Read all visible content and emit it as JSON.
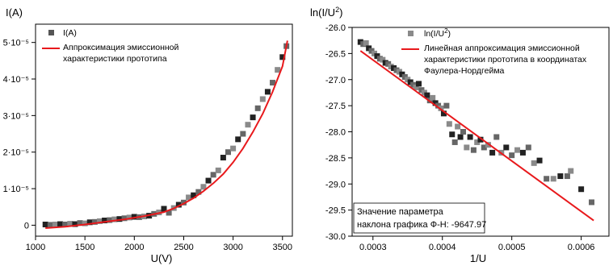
{
  "chart_data": [
    {
      "type": "scatter",
      "xlabel": "U(V)",
      "ylabel": "I(A)",
      "xlim": [
        1000,
        3600
      ],
      "ylim": [
        -3e-06,
        5.5e-05
      ],
      "x_ticks": [
        1000,
        1500,
        2000,
        2500,
        3000,
        3500
      ],
      "x_tick_labels": [
        "1000",
        "1500",
        "2000",
        "2500",
        "3000",
        "3500"
      ],
      "y_ticks": [
        0,
        1e-05,
        2e-05,
        3e-05,
        4e-05,
        5e-05
      ],
      "y_tick_labels": [
        "0",
        "1·10⁻⁵",
        "2·10⁻⁵",
        "3·10⁻⁵",
        "4·10⁻⁵",
        "5·10⁻⁵"
      ],
      "legend_position": "top-left",
      "grid": false,
      "series": [
        {
          "name": "I(A)",
          "kind": "points",
          "color": "#555555",
          "x": [
            1100,
            1150,
            1200,
            1250,
            1300,
            1350,
            1400,
            1450,
            1500,
            1550,
            1600,
            1650,
            1700,
            1750,
            1800,
            1850,
            1900,
            1950,
            2000,
            2050,
            2100,
            2150,
            2200,
            2250,
            2300,
            2350,
            2400,
            2450,
            2500,
            2550,
            2600,
            2650,
            2700,
            2750,
            2800,
            2850,
            2900,
            2950,
            3000,
            3050,
            3100,
            3150,
            3200,
            3250,
            3300,
            3350,
            3400,
            3450,
            3500,
            3540
          ],
          "y": [
            2e-07,
            1e-07,
            2e-07,
            3e-07,
            2e-07,
            4e-07,
            3e-07,
            6e-07,
            5e-07,
            8e-07,
            9e-07,
            1.1e-06,
            1.3e-06,
            1.4e-06,
            1.6e-06,
            1.7e-06,
            1.9e-06,
            2.1e-06,
            2.3e-06,
            2.2e-06,
            2.4e-06,
            2.6e-06,
            3.1e-06,
            3.5e-06,
            4.5e-06,
            3.4e-06,
            4.7e-06,
            5.6e-06,
            6.2e-06,
            7.6e-06,
            8.2e-06,
            9.1e-06,
            1.05e-05,
            1.22e-05,
            1.38e-05,
            1.5e-05,
            1.85e-05,
            2e-05,
            2.1e-05,
            2.35e-05,
            2.5e-05,
            2.75e-05,
            2.95e-05,
            3.2e-05,
            3.45e-05,
            3.65e-05,
            3.9e-05,
            4.25e-05,
            4.6e-05,
            4.9e-05
          ]
        },
        {
          "name": "Аппроксимация эмиссионной характеристики прототипа",
          "kind": "line",
          "color": "#e8191c",
          "x": [
            1100,
            1300,
            1500,
            1700,
            1900,
            2100,
            2300,
            2400,
            2500,
            2600,
            2700,
            2800,
            2900,
            3000,
            3100,
            3200,
            3300,
            3400,
            3500,
            3550
          ],
          "y": [
            -8e-07,
            -4e-07,
            2e-07,
            9e-07,
            1.6e-06,
            2.5e-06,
            3.6e-06,
            4.6e-06,
            5.9e-06,
            7.4e-06,
            9.3e-06,
            1.15e-05,
            1.4e-05,
            1.72e-05,
            2.1e-05,
            2.55e-05,
            3.05e-05,
            3.65e-05,
            4.35e-05,
            5.05e-05
          ]
        }
      ]
    },
    {
      "type": "scatter",
      "xlabel": "1/U",
      "ylabel": "ln(I/U²)",
      "xlim": [
        0.00027,
        0.00064
      ],
      "ylim": [
        -30.0,
        -26.0
      ],
      "x_ticks": [
        0.0003,
        0.0004,
        0.0005,
        0.0006
      ],
      "x_tick_labels": [
        "0.0003",
        "0.0004",
        "0.0005",
        "0.0006"
      ],
      "y_ticks": [
        -30.0,
        -29.5,
        -29.0,
        -28.5,
        -28.0,
        -27.5,
        -27.0,
        -26.5,
        -26.0
      ],
      "y_tick_labels": [
        "-30.0",
        "-29.5",
        "-29.0",
        "-28.5",
        "-28.0",
        "-27.5",
        "-27.0",
        "-26.5",
        "-26.0"
      ],
      "legend_position": "top-right",
      "grid": false,
      "series": [
        {
          "name": "ln(I/U²)",
          "kind": "points",
          "color": "#555555",
          "x": [
            0.000282,
            0.000286,
            0.00029,
            0.000294,
            0.000298,
            0.000302,
            0.000306,
            0.00031,
            0.000314,
            0.000318,
            0.000322,
            0.000326,
            0.00033,
            0.000334,
            0.000338,
            0.000342,
            0.000346,
            0.00035,
            0.000354,
            0.000358,
            0.000362,
            0.000366,
            0.00037,
            0.000374,
            0.000378,
            0.000382,
            0.000386,
            0.00039,
            0.000394,
            0.000398,
            0.000402,
            0.000406,
            0.00041,
            0.000414,
            0.000418,
            0.000422,
            0.000426,
            0.00043,
            0.000435,
            0.00044,
            0.000445,
            0.00045,
            0.000455,
            0.00046,
            0.000466,
            0.000472,
            0.000478,
            0.000485,
            0.000492,
            0.0005,
            0.000508,
            0.000516,
            0.000524,
            0.000532,
            0.00054,
            0.00055,
            0.00056,
            0.00057,
            0.00058,
            0.000585,
            0.0006,
            0.000615
          ],
          "y": [
            -26.28,
            -26.32,
            -26.3,
            -26.4,
            -26.45,
            -26.5,
            -26.55,
            -26.6,
            -26.62,
            -26.68,
            -26.7,
            -26.75,
            -26.78,
            -26.82,
            -26.85,
            -26.9,
            -26.95,
            -27.0,
            -27.05,
            -27.1,
            -27.15,
            -27.08,
            -27.2,
            -27.25,
            -27.3,
            -27.4,
            -27.35,
            -27.45,
            -27.5,
            -27.55,
            -27.65,
            -27.5,
            -27.85,
            -28.05,
            -28.2,
            -27.9,
            -28.1,
            -28.0,
            -28.3,
            -28.1,
            -28.35,
            -28.2,
            -28.15,
            -28.3,
            -28.25,
            -28.4,
            -28.1,
            -28.4,
            -28.3,
            -28.45,
            -28.35,
            -28.4,
            -28.3,
            -28.6,
            -28.55,
            -28.9,
            -28.9,
            -28.85,
            -28.85,
            -28.75,
            -29.1,
            -29.35
          ]
        },
        {
          "name": "Линейная аппроксимация эмиссионной характеристики прототипа в координатах Фаулера-Нордгейма",
          "kind": "line",
          "color": "#e8191c",
          "x": [
            0.000282,
            0.000618
          ],
          "y": [
            -26.45,
            -29.7
          ]
        }
      ],
      "annotation": [
        "Значение параметра",
        "наклона графика Ф-Н: -9647.97"
      ]
    }
  ],
  "legend_left": {
    "line1": "I(A)",
    "line2a": "Аппроксимация эмиссионной",
    "line2b": "характеристики прототипа"
  },
  "legend_right": {
    "line1": "ln(I/U",
    "line1_sup": "2",
    "line1_tail": ")",
    "line2a": "Линейная аппроксимация эмиссионной",
    "line2b": "характеристики прототипа в координатах",
    "line2c": "Фаулера-Нордгейма"
  },
  "left_ylabel": "I(A)",
  "left_xlabel": "U(V)",
  "right_ylabel_base": "ln(I/U",
  "right_ylabel_sup": "2",
  "right_ylabel_tail": ")",
  "right_xlabel": "1/U",
  "annotation_line1": "Значение параметра",
  "annotation_line2": "наклона графика Ф-Н: -9647.97"
}
